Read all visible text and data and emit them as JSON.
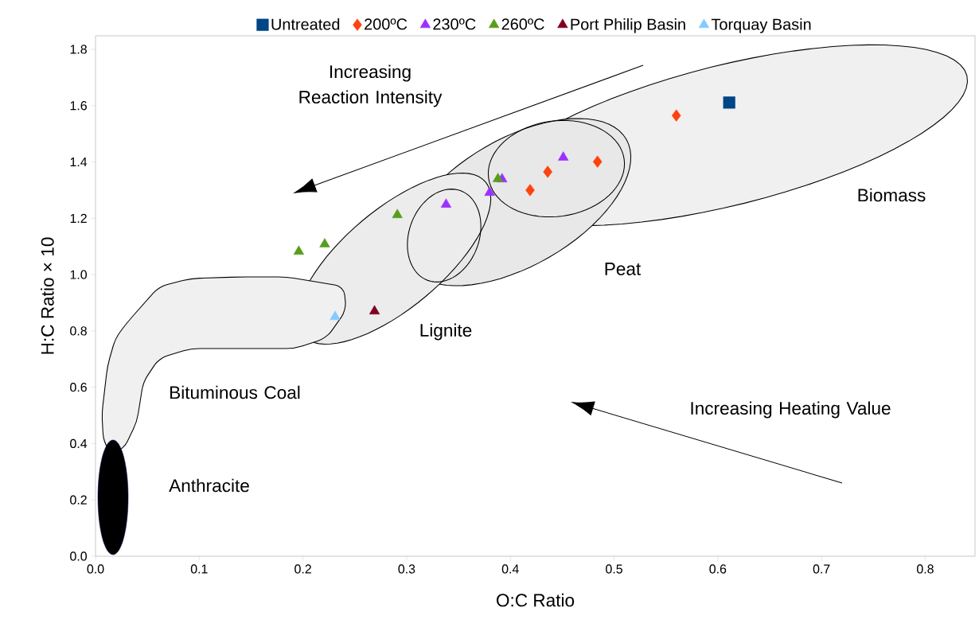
{
  "chart_data": {
    "type": "scatter",
    "xlabel": "O:C Ratio",
    "ylabel": "H:C Ratio × 10",
    "xlim": [
      0,
      0.848
    ],
    "ylim": [
      0,
      1.848
    ],
    "xticks": [
      {
        "value": 0,
        "label": "0.0"
      },
      0.1,
      0.2,
      0.3,
      0.4,
      0.5,
      0.6,
      0.7,
      0.8
    ],
    "yticks": [
      {
        "value": 0,
        "label": "0.0"
      },
      0.2,
      0.4,
      0.6,
      0.8,
      {
        "value": 1,
        "label": "1.0"
      },
      1.2,
      1.4,
      1.6,
      1.8
    ],
    "legend": "top",
    "grid": false,
    "series": [
      {
        "name": "Untreated",
        "color": "#004586",
        "marker": "square",
        "x": [
          0.611
        ],
        "values": [
          1.611
        ]
      },
      {
        "name": "200ºC",
        "color": "#ff420e",
        "marker": "diamond",
        "x": [
          0.56,
          0.484,
          0.436,
          0.419
        ],
        "values": [
          1.565,
          1.401,
          1.365,
          1.3
        ]
      },
      {
        "name": "230ºC",
        "color": "#9b30ff",
        "marker": "triangle",
        "x": [
          0.451,
          0.392,
          0.38,
          0.338
        ],
        "values": [
          1.416,
          1.339,
          1.291,
          1.249
        ]
      },
      {
        "name": "260ºC",
        "color": "#579d1c",
        "marker": "triangle",
        "x": [
          0.388,
          0.291,
          0.221,
          0.196
        ],
        "values": [
          1.34,
          1.212,
          1.108,
          1.082
        ]
      },
      {
        "name": "Port Philip Basin",
        "color": "#7e0021",
        "marker": "triangle",
        "x": [
          0.269
        ],
        "values": [
          0.87
        ]
      },
      {
        "name": "Torquay Basin",
        "color": "#83caff",
        "marker": "triangle",
        "x": [
          0.231
        ],
        "values": [
          0.85
        ]
      }
    ],
    "annotations": [
      "Increasing Reaction Intensity",
      "Increasing Heating Value",
      "Biomass",
      "Peat",
      "Lignite",
      "Bituminous Coal",
      "Anthracite"
    ]
  }
}
